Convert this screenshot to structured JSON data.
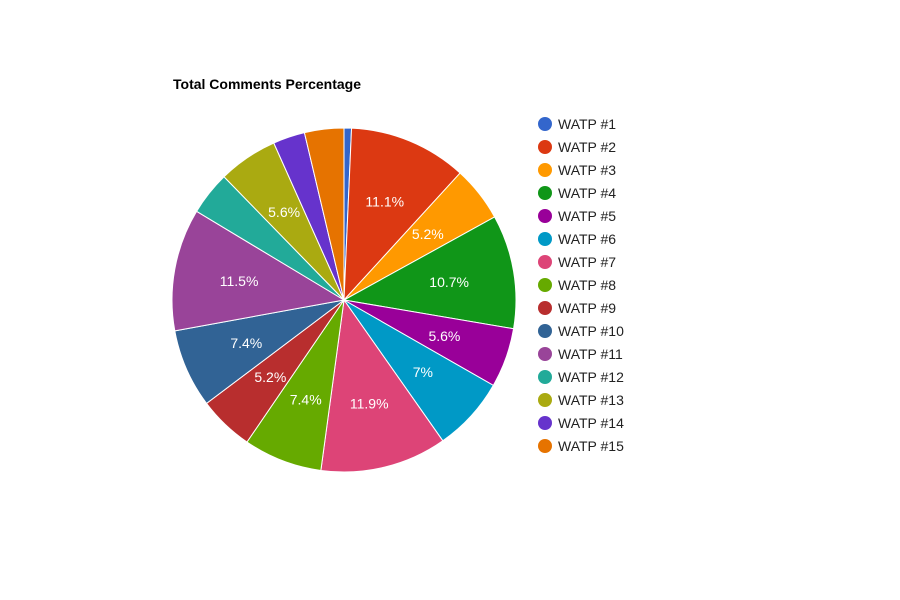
{
  "chart_data": {
    "type": "pie",
    "title": "Total Comments Percentage",
    "legend_position": "right",
    "slices": [
      {
        "name": "WATP #1",
        "value": 0.7,
        "label": "",
        "color": "#3366cc"
      },
      {
        "name": "WATP #2",
        "value": 11.1,
        "label": "11.1%",
        "color": "#dc3912"
      },
      {
        "name": "WATP #3",
        "value": 5.2,
        "label": "5.2%",
        "color": "#ff9900"
      },
      {
        "name": "WATP #4",
        "value": 10.7,
        "label": "10.7%",
        "color": "#109618"
      },
      {
        "name": "WATP #5",
        "value": 5.6,
        "label": "5.6%",
        "color": "#990099"
      },
      {
        "name": "WATP #6",
        "value": 7.0,
        "label": "7%",
        "color": "#0099c6"
      },
      {
        "name": "WATP #7",
        "value": 11.9,
        "label": "11.9%",
        "color": "#dd4477"
      },
      {
        "name": "WATP #8",
        "value": 7.4,
        "label": "7.4%",
        "color": "#66aa00"
      },
      {
        "name": "WATP #9",
        "value": 5.2,
        "label": "5.2%",
        "color": "#b82e2e"
      },
      {
        "name": "WATP #10",
        "value": 7.4,
        "label": "7.4%",
        "color": "#316395"
      },
      {
        "name": "WATP #11",
        "value": 11.5,
        "label": "11.5%",
        "color": "#994499"
      },
      {
        "name": "WATP #12",
        "value": 4.1,
        "label": "",
        "color": "#22aa99"
      },
      {
        "name": "WATP #13",
        "value": 5.6,
        "label": "5.6%",
        "color": "#aaaa11"
      },
      {
        "name": "WATP #14",
        "value": 3.0,
        "label": "",
        "color": "#6633cc"
      },
      {
        "name": "WATP #15",
        "value": 3.7,
        "label": "",
        "color": "#e67300"
      }
    ]
  }
}
